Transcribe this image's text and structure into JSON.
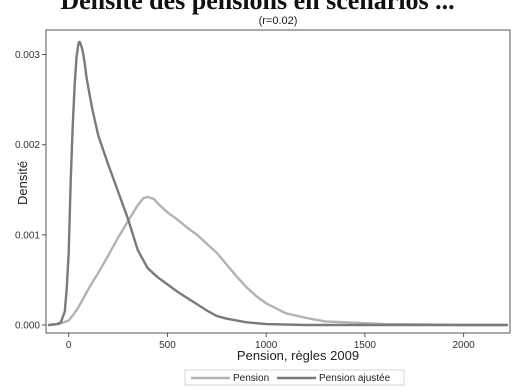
{
  "page_heading": "Densité des pensions en scénarios ...",
  "chart_data": {
    "type": "line",
    "title": "(r=0.02)",
    "xlabel": "Pension, règles 2009",
    "ylabel": "Densité",
    "xlim": [
      -110,
      2230
    ],
    "ylim": [
      0,
      0.00325
    ],
    "x_ticks": [
      0,
      500,
      1000,
      1500,
      2000
    ],
    "y_ticks": [
      0.0,
      0.001,
      0.002,
      0.003
    ],
    "y_tick_labels": [
      "0.000",
      "0.001",
      "0.002",
      "0.003"
    ],
    "grid": false,
    "legend_position": "bottom",
    "series": [
      {
        "name": "Pension",
        "color": "#b3b3b3",
        "points": [
          [
            -100,
            0
          ],
          [
            -50,
            1e-05
          ],
          [
            0,
            5e-05
          ],
          [
            25,
            0.00012
          ],
          [
            50,
            0.0002
          ],
          [
            75,
            0.0003
          ],
          [
            100,
            0.0004
          ],
          [
            150,
            0.00058
          ],
          [
            200,
            0.00077
          ],
          [
            250,
            0.00097
          ],
          [
            300,
            0.00115
          ],
          [
            350,
            0.00133
          ],
          [
            380,
            0.00141
          ],
          [
            400,
            0.00142
          ],
          [
            430,
            0.0014
          ],
          [
            460,
            0.00133
          ],
          [
            500,
            0.00125
          ],
          [
            550,
            0.00117
          ],
          [
            600,
            0.00108
          ],
          [
            650,
            0.001
          ],
          [
            700,
            0.0009
          ],
          [
            750,
            0.0008
          ],
          [
            800,
            0.00067
          ],
          [
            850,
            0.00054
          ],
          [
            900,
            0.00042
          ],
          [
            950,
            0.00032
          ],
          [
            1000,
            0.00024
          ],
          [
            1100,
            0.00013
          ],
          [
            1200,
            8e-05
          ],
          [
            1300,
            4e-05
          ],
          [
            1400,
            3e-05
          ],
          [
            1500,
            2e-05
          ],
          [
            1600,
            1e-05
          ],
          [
            1800,
            5e-06
          ],
          [
            2000,
            0
          ],
          [
            2220,
            0
          ]
        ]
      },
      {
        "name": "Pension ajustée",
        "color": "#7a7a7a",
        "points": [
          [
            -100,
            0
          ],
          [
            -60,
            1e-05
          ],
          [
            -40,
            3e-05
          ],
          [
            -20,
            0.00015
          ],
          [
            -10,
            0.0004
          ],
          [
            0,
            0.0008
          ],
          [
            10,
            0.0016
          ],
          [
            20,
            0.0022
          ],
          [
            30,
            0.00265
          ],
          [
            40,
            0.00298
          ],
          [
            50,
            0.00313
          ],
          [
            55,
            0.00314
          ],
          [
            60,
            0.00312
          ],
          [
            70,
            0.00305
          ],
          [
            80,
            0.00292
          ],
          [
            90,
            0.00275
          ],
          [
            100,
            0.00262
          ],
          [
            120,
            0.00239
          ],
          [
            150,
            0.0021
          ],
          [
            200,
            0.00178
          ],
          [
            250,
            0.00148
          ],
          [
            300,
            0.00118
          ],
          [
            350,
            0.00083
          ],
          [
            400,
            0.00063
          ],
          [
            450,
            0.00053
          ],
          [
            500,
            0.00045
          ],
          [
            550,
            0.00037
          ],
          [
            600,
            0.0003
          ],
          [
            650,
            0.00023
          ],
          [
            700,
            0.00016
          ],
          [
            750,
            0.0001
          ],
          [
            800,
            7e-05
          ],
          [
            900,
            3e-05
          ],
          [
            1000,
            1e-05
          ],
          [
            1200,
            0
          ],
          [
            1500,
            0
          ],
          [
            2220,
            0
          ]
        ]
      }
    ]
  }
}
